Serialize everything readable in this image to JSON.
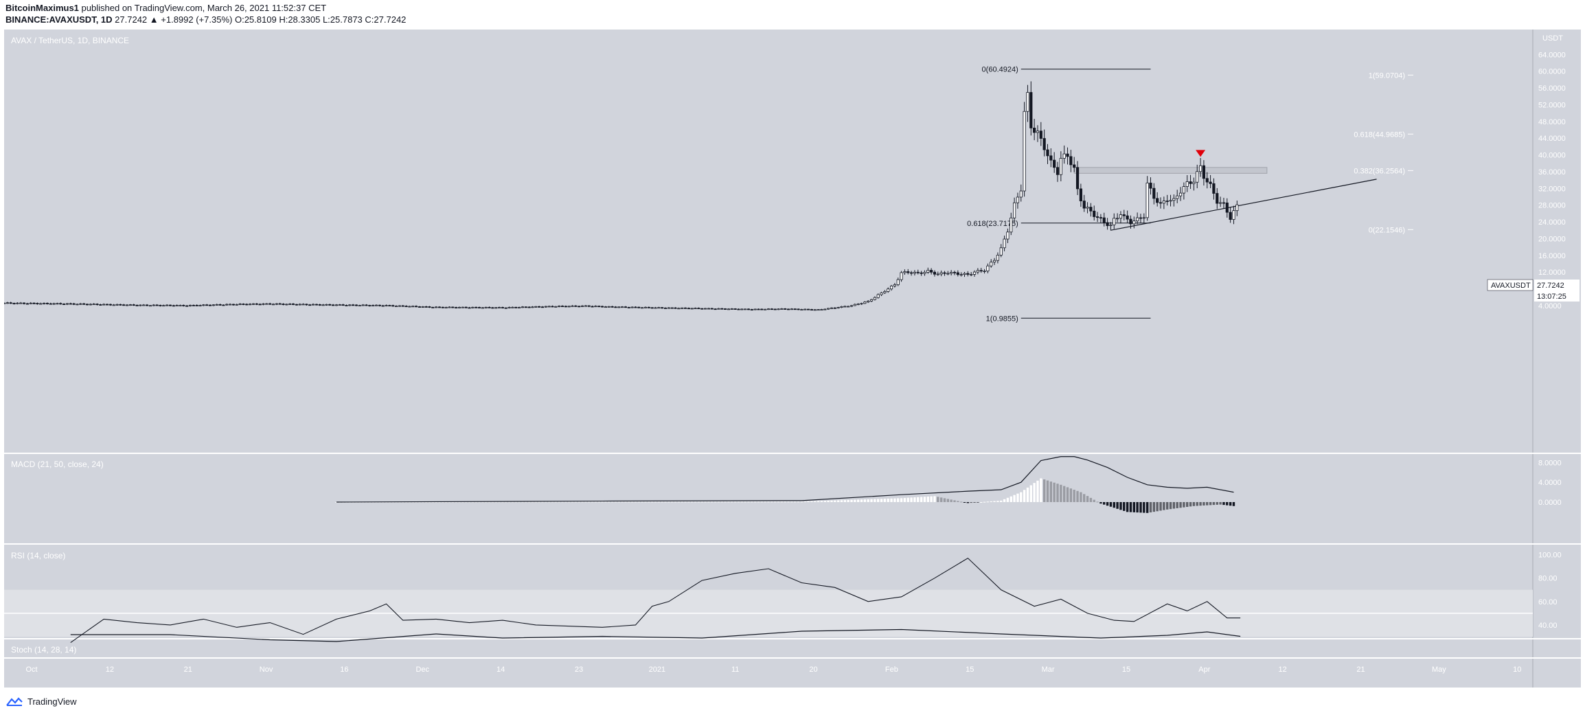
{
  "header": {
    "author": "BitcoinMaximus1",
    "published": "published on TradingView.com, March 26, 2021 11:52:37 CET",
    "symbol_line": "BINANCE:AVAXUSDT, 1D",
    "last": "27.7242",
    "change": "▲ +1.8992 (+7.35%)",
    "o_label": "O:",
    "o": "25.8109",
    "h_label": "H:",
    "h": "28.3305",
    "l_label": "L:",
    "l": "25.7873",
    "c_label": "C:",
    "c": "27.7242"
  },
  "footer": {
    "brand": "TradingView",
    "logo_icon": "tradingview-logo-icon"
  },
  "chart_data": [
    {
      "type": "candlestick",
      "title": "AVAX / TetherUS, 1D, BINANCE",
      "y_unit": "USDT",
      "ylim": [
        0,
        67
      ],
      "yticks": [
        "64.0000",
        "60.0000",
        "56.0000",
        "52.0000",
        "48.0000",
        "44.0000",
        "40.0000",
        "36.0000",
        "32.0000",
        "28.0000",
        "24.0000",
        "20.0000",
        "16.0000",
        "12.0000",
        "8.0000",
        "4.0000"
      ],
      "x_labels": [
        "Oct",
        "12",
        "21",
        "Nov",
        "16",
        "Dec",
        "14",
        "23",
        "2021",
        "11",
        "20",
        "Feb",
        "15",
        "Mar",
        "15",
        "Apr",
        "12",
        "21",
        "May",
        "10"
      ],
      "price_label": {
        "symbol": "AVAXUSDT",
        "value": "27.7242",
        "countdown": "13:07:25"
      },
      "close_points": [
        [
          0,
          4.6
        ],
        [
          20,
          4.4
        ],
        [
          40,
          4.1
        ],
        [
          55,
          4.0
        ],
        [
          70,
          4.3
        ],
        [
          80,
          4.4
        ],
        [
          95,
          4.2
        ],
        [
          115,
          4.0
        ],
        [
          130,
          3.6
        ],
        [
          150,
          3.5
        ],
        [
          165,
          3.8
        ],
        [
          175,
          3.9
        ],
        [
          182,
          3.7
        ],
        [
          195,
          3.5
        ],
        [
          210,
          3.3
        ],
        [
          225,
          3.1
        ],
        [
          235,
          3.2
        ],
        [
          245,
          3.0
        ],
        [
          250,
          3.5
        ],
        [
          255,
          4.0
        ],
        [
          260,
          5.0
        ],
        [
          262,
          6.0
        ],
        [
          265,
          7.5
        ],
        [
          268,
          9.0
        ],
        [
          270,
          11.8
        ],
        [
          272,
          12.0
        ],
        [
          275,
          11.7
        ],
        [
          278,
          12.2
        ],
        [
          281,
          11.5
        ],
        [
          284,
          11.9
        ],
        [
          287,
          11.6
        ],
        [
          290,
          11.4
        ],
        [
          292,
          12.0
        ],
        [
          295,
          12.5
        ],
        [
          298,
          15.0
        ],
        [
          300,
          17.5
        ],
        [
          302,
          22.0
        ],
        [
          304,
          28.0
        ],
        [
          306,
          32.0
        ],
        [
          307,
          50.0
        ],
        [
          308,
          54.0
        ],
        [
          309,
          47.0
        ],
        [
          311,
          45.0
        ],
        [
          313,
          42.0
        ],
        [
          315,
          38.0
        ],
        [
          317,
          36.0
        ],
        [
          318,
          39.0
        ],
        [
          320,
          40.0
        ],
        [
          322,
          36.5
        ],
        [
          323,
          31.5
        ],
        [
          325,
          27.5
        ],
        [
          327,
          26.5
        ],
        [
          329,
          25.0
        ],
        [
          331,
          24.0
        ],
        [
          333,
          23.0
        ],
        [
          334,
          24.5
        ],
        [
          336,
          26.0
        ],
        [
          337,
          25.0
        ],
        [
          339,
          24.0
        ],
        [
          341,
          24.5
        ],
        [
          343,
          25.5
        ],
        [
          344,
          33.0
        ],
        [
          346,
          30.0
        ],
        [
          348,
          28.0
        ],
        [
          350,
          29.5
        ],
        [
          352,
          29.0
        ],
        [
          354,
          31.5
        ],
        [
          356,
          33.0
        ],
        [
          358,
          34.0
        ],
        [
          360,
          37.0
        ],
        [
          361,
          35.0
        ],
        [
          363,
          32.5
        ],
        [
          365,
          29.0
        ],
        [
          367,
          28.0
        ],
        [
          369,
          25.0
        ],
        [
          371,
          27.7
        ]
      ],
      "annotations": {
        "fib_top": [
          {
            "label": "0(60.4924)",
            "price": 60.4924
          },
          {
            "label": "0.618(23.7175)",
            "price": 23.7175
          },
          {
            "label": "1(0.9855)",
            "price": 0.9855
          }
        ],
        "fib_right": [
          {
            "label": "1(59.0704)",
            "price": 59.0704
          },
          {
            "label": "0.618(44.9685)",
            "price": 44.9685
          },
          {
            "label": "0.382(36.2564)",
            "price": 36.2564
          },
          {
            "label": "0(22.1546)",
            "price": 22.1546
          }
        ],
        "resistance_zone": [
          35.6,
          37.0
        ],
        "ascending_support": true,
        "red_marker": "down-arrow"
      }
    },
    {
      "type": "line",
      "title": "MACD (21, 50, close, 24)",
      "yticks": [
        "8.0000",
        "4.0000",
        "0.0000"
      ],
      "macd_line": [
        [
          100,
          0
        ],
        [
          180,
          0.2
        ],
        [
          240,
          0.3
        ],
        [
          270,
          1.5
        ],
        [
          290,
          2.2
        ],
        [
          300,
          2.5
        ],
        [
          306,
          4
        ],
        [
          312,
          8.4
        ],
        [
          318,
          9.2
        ],
        [
          322,
          9.2
        ],
        [
          326,
          8.5
        ],
        [
          332,
          7
        ],
        [
          338,
          5
        ],
        [
          344,
          3.5
        ],
        [
          350,
          3.0
        ],
        [
          356,
          2.8
        ],
        [
          362,
          3.0
        ],
        [
          370,
          2.0
        ]
      ],
      "histogram": [
        [
          100,
          0
        ],
        [
          180,
          0.1
        ],
        [
          240,
          0.1
        ],
        [
          270,
          0.8
        ],
        [
          280,
          1.2
        ],
        [
          290,
          -0.2
        ],
        [
          300,
          0.3
        ],
        [
          306,
          2.0
        ],
        [
          312,
          4.8
        ],
        [
          318,
          3.5
        ],
        [
          324,
          2.0
        ],
        [
          330,
          -0.3
        ],
        [
          338,
          -2.0
        ],
        [
          344,
          -2.2
        ],
        [
          350,
          -1.5
        ],
        [
          358,
          -0.8
        ],
        [
          366,
          -0.5
        ],
        [
          370,
          -0.8
        ]
      ]
    },
    {
      "type": "line",
      "title": "RSI (14, close)",
      "yticks": [
        "100.00",
        "80.00",
        "60.00",
        "40.00"
      ],
      "band": [
        30,
        70
      ],
      "midline": 50,
      "values": [
        [
          20,
          25
        ],
        [
          30,
          45
        ],
        [
          40,
          42
        ],
        [
          50,
          40
        ],
        [
          60,
          45
        ],
        [
          70,
          38
        ],
        [
          80,
          42
        ],
        [
          90,
          32
        ],
        [
          100,
          45
        ],
        [
          110,
          52
        ],
        [
          115,
          58
        ],
        [
          120,
          44
        ],
        [
          130,
          45
        ],
        [
          140,
          42
        ],
        [
          150,
          44
        ],
        [
          160,
          40
        ],
        [
          180,
          38
        ],
        [
          190,
          40
        ],
        [
          195,
          56
        ],
        [
          200,
          60
        ],
        [
          210,
          78
        ],
        [
          220,
          84
        ],
        [
          230,
          88
        ],
        [
          240,
          76
        ],
        [
          250,
          72
        ],
        [
          260,
          60
        ],
        [
          270,
          64
        ],
        [
          280,
          80
        ],
        [
          290,
          97
        ],
        [
          300,
          70
        ],
        [
          310,
          56
        ],
        [
          318,
          62
        ],
        [
          326,
          50
        ],
        [
          334,
          44
        ],
        [
          340,
          43
        ],
        [
          350,
          58
        ],
        [
          356,
          52
        ],
        [
          362,
          60
        ],
        [
          368,
          46
        ],
        [
          372,
          46
        ]
      ]
    },
    {
      "type": "line",
      "title": "Stoch (14, 28, 14)",
      "k_line": [
        [
          20,
          50
        ],
        [
          50,
          50
        ],
        [
          80,
          35
        ],
        [
          100,
          30
        ],
        [
          130,
          52
        ],
        [
          150,
          40
        ],
        [
          180,
          45
        ],
        [
          210,
          40
        ],
        [
          240,
          60
        ],
        [
          270,
          65
        ],
        [
          300,
          52
        ],
        [
          330,
          40
        ],
        [
          350,
          48
        ],
        [
          362,
          58
        ],
        [
          372,
          45
        ]
      ]
    }
  ]
}
